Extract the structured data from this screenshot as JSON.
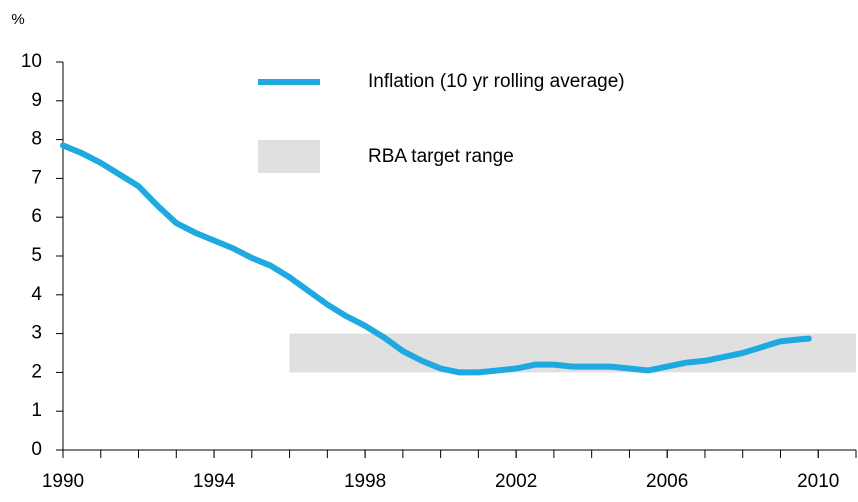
{
  "chart_data": {
    "type": "line",
    "y_unit": "%",
    "x": [
      1990,
      1990.5,
      1991,
      1991.5,
      1992,
      1992.5,
      1993,
      1993.5,
      1994,
      1994.5,
      1995,
      1995.5,
      1996,
      1996.5,
      1997,
      1997.5,
      1998,
      1998.5,
      1999,
      1999.5,
      2000,
      2000.5,
      2001,
      2001.5,
      2002,
      2002.5,
      2003,
      2003.5,
      2004,
      2004.5,
      2005,
      2005.5,
      2006,
      2006.5,
      2007,
      2007.5,
      2008,
      2008.5,
      2009,
      2009.5,
      2009.75
    ],
    "series": [
      {
        "name": "Inflation (10 yr rolling average)",
        "color": "#1ea9e1",
        "values": [
          7.85,
          7.65,
          7.4,
          7.1,
          6.8,
          6.3,
          5.85,
          5.6,
          5.4,
          5.2,
          4.95,
          4.75,
          4.45,
          4.1,
          3.75,
          3.45,
          3.2,
          2.9,
          2.55,
          2.3,
          2.1,
          2.0,
          2.0,
          2.05,
          2.1,
          2.2,
          2.2,
          2.15,
          2.15,
          2.15,
          2.1,
          2.05,
          2.15,
          2.25,
          2.3,
          2.4,
          2.5,
          2.65,
          2.8,
          2.85,
          2.87
        ]
      }
    ],
    "bands": [
      {
        "name": "RBA target range",
        "color": "#e0e0e0",
        "x": [
          1996,
          2011
        ],
        "y": [
          2,
          3
        ]
      }
    ],
    "xlim": [
      1990,
      2011
    ],
    "xticks": [
      1990,
      1994,
      1998,
      2002,
      2006,
      2010
    ],
    "xminor_ticks": [
      1990,
      1991,
      1992,
      1993,
      1994,
      1995,
      1996,
      1997,
      1998,
      1999,
      2000,
      2001,
      2002,
      2003,
      2004,
      2005,
      2006,
      2007,
      2008,
      2009,
      2010,
      2011
    ],
    "ylim": [
      0,
      10
    ],
    "yticks": [
      0,
      1,
      2,
      3,
      4,
      5,
      6,
      7,
      8,
      9,
      10
    ],
    "grid": false
  }
}
